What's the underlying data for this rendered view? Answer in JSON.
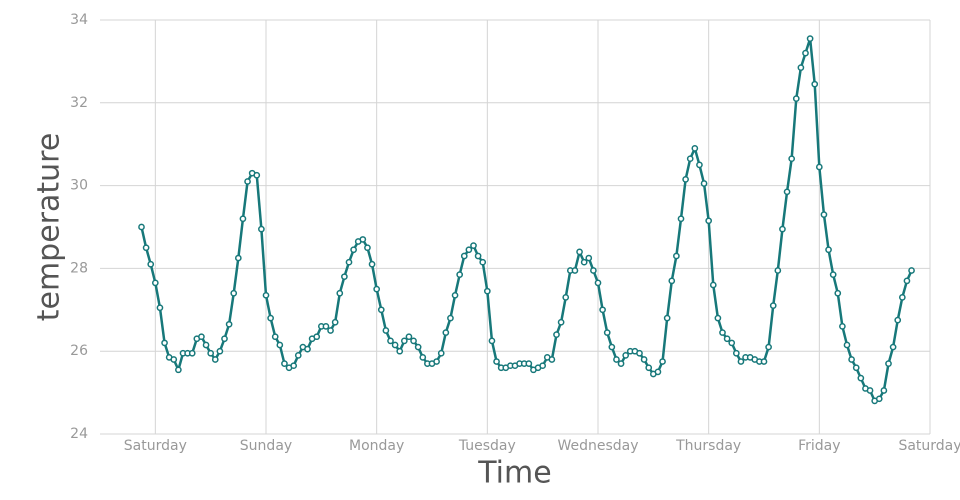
{
  "chart_data": {
    "type": "line",
    "x_label": "Time",
    "y_label": "temperature",
    "xlim": [
      -12,
      168
    ],
    "ylim": [
      24,
      34
    ],
    "xticks": [
      {
        "value": 0,
        "label": "Saturday"
      },
      {
        "value": 24,
        "label": "Sunday"
      },
      {
        "value": 48,
        "label": "Monday"
      },
      {
        "value": 72,
        "label": "Tuesday"
      },
      {
        "value": 96,
        "label": "Wednesday"
      },
      {
        "value": 120,
        "label": "Thursday"
      },
      {
        "value": 144,
        "label": "Friday"
      },
      {
        "value": 168,
        "label": "Saturday"
      }
    ],
    "yticks": [
      24,
      26,
      28,
      30,
      32,
      34
    ],
    "grid": true,
    "color": "#17787a",
    "x": [
      -3,
      -2,
      -1,
      0,
      1,
      2,
      3,
      4,
      5,
      6,
      7,
      8,
      9,
      10,
      11,
      12,
      13,
      14,
      15,
      16,
      17,
      18,
      19,
      20,
      21,
      22,
      23,
      24,
      25,
      26,
      27,
      28,
      29,
      30,
      31,
      32,
      33,
      34,
      35,
      36,
      37,
      38,
      39,
      40,
      41,
      42,
      43,
      44,
      45,
      46,
      47,
      48,
      49,
      50,
      51,
      52,
      53,
      54,
      55,
      56,
      57,
      58,
      59,
      60,
      61,
      62,
      63,
      64,
      65,
      66,
      67,
      68,
      69,
      70,
      71,
      72,
      73,
      74,
      75,
      76,
      77,
      78,
      79,
      80,
      81,
      82,
      83,
      84,
      85,
      86,
      87,
      88,
      89,
      90,
      91,
      92,
      93,
      94,
      95,
      96,
      97,
      98,
      99,
      100,
      101,
      102,
      103,
      104,
      105,
      106,
      107,
      108,
      109,
      110,
      111,
      112,
      113,
      114,
      115,
      116,
      117,
      118,
      119,
      120,
      121,
      122,
      123,
      124,
      125,
      126,
      127,
      128,
      129,
      130,
      131,
      132,
      133,
      134,
      135,
      136,
      137,
      138,
      139,
      140,
      141,
      142,
      143,
      144,
      145,
      146,
      147,
      148,
      149,
      150,
      151,
      152,
      153,
      154,
      155,
      156,
      157,
      158,
      159,
      160,
      161,
      162,
      163,
      164
    ],
    "values": [
      29.0,
      28.5,
      28.1,
      27.65,
      27.05,
      26.2,
      25.85,
      25.8,
      25.55,
      25.95,
      25.95,
      25.95,
      26.3,
      26.35,
      26.15,
      25.95,
      25.8,
      26.0,
      26.3,
      26.65,
      27.4,
      28.25,
      29.2,
      30.1,
      30.3,
      30.25,
      28.95,
      27.35,
      26.8,
      26.35,
      26.15,
      25.7,
      25.6,
      25.65,
      25.9,
      26.1,
      26.05,
      26.3,
      26.35,
      26.6,
      26.6,
      26.5,
      26.7,
      27.4,
      27.8,
      28.15,
      28.45,
      28.65,
      28.7,
      28.5,
      28.1,
      27.5,
      27.0,
      26.5,
      26.25,
      26.15,
      26.0,
      26.25,
      26.35,
      26.25,
      26.1,
      25.85,
      25.7,
      25.7,
      25.75,
      25.95,
      26.45,
      26.8,
      27.35,
      27.85,
      28.3,
      28.45,
      28.55,
      28.3,
      28.15,
      27.45,
      26.25,
      25.75,
      25.6,
      25.6,
      25.65,
      25.65,
      25.7,
      25.7,
      25.7,
      25.55,
      25.6,
      25.65,
      25.85,
      25.8,
      26.4,
      26.7,
      27.3,
      27.95,
      27.95,
      28.4,
      28.15,
      28.25,
      27.95,
      27.65,
      27.0,
      26.45,
      26.1,
      25.8,
      25.7,
      25.9,
      26.0,
      26.0,
      25.95,
      25.8,
      25.6,
      25.45,
      25.5,
      25.75,
      26.8,
      27.7,
      28.3,
      29.2,
      30.15,
      30.65,
      30.9,
      30.5,
      30.05,
      29.15,
      27.6,
      26.8,
      26.45,
      26.3,
      26.2,
      25.95,
      25.75,
      25.85,
      25.85,
      25.8,
      25.75,
      25.75,
      26.1,
      27.1,
      27.95,
      28.95,
      29.85,
      30.65,
      32.1,
      32.85,
      33.2,
      33.55,
      32.45,
      30.45,
      29.3,
      28.45,
      27.85,
      27.4,
      26.6,
      26.15,
      25.8,
      25.6,
      25.35,
      25.1,
      25.05,
      24.8,
      24.85,
      25.05,
      25.7,
      26.1,
      26.75,
      27.3,
      27.7,
      27.95
    ]
  }
}
